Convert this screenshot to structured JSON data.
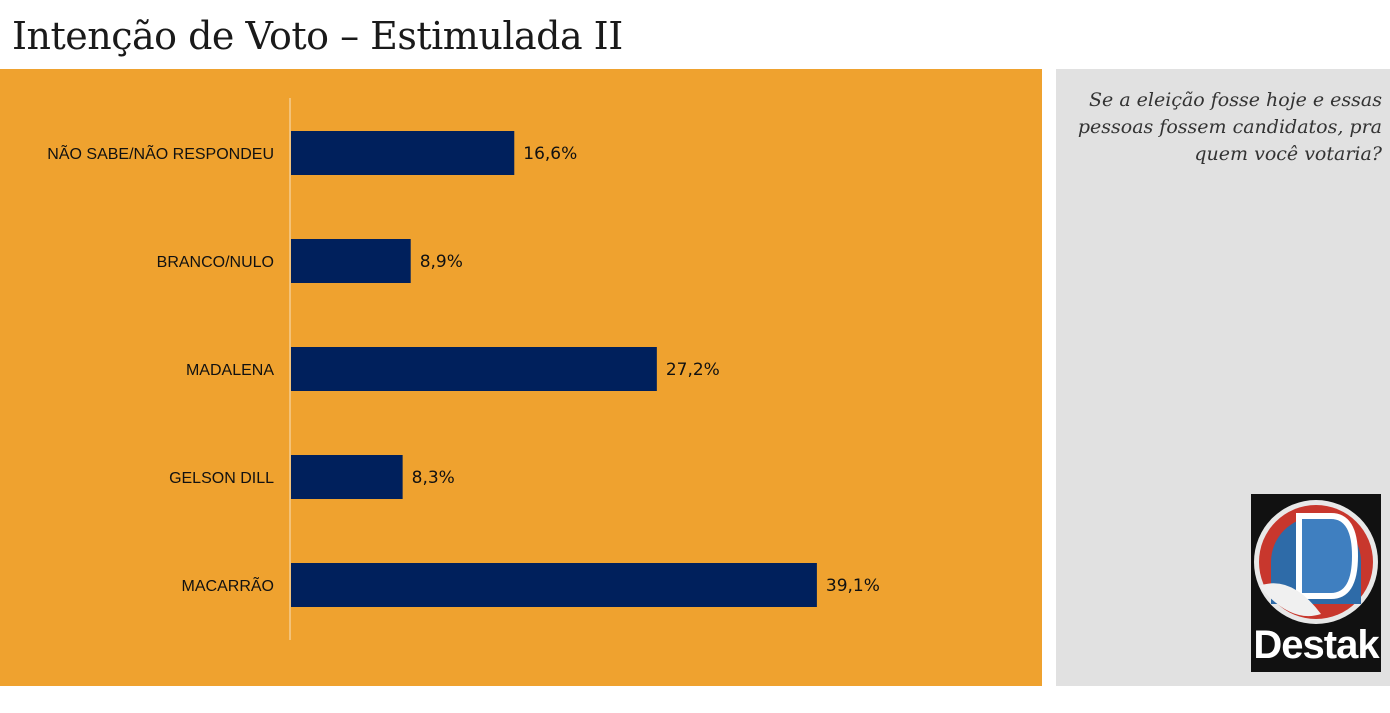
{
  "page": {
    "title": "Intenção de Voto – Estimulada II"
  },
  "side_panel": {
    "question": "Se a eleição fosse hoje e essas pessoas fossem candidatos, pra quem você votaria?",
    "logo_text": "Destak"
  },
  "colors": {
    "chart_background": "#EFA22F",
    "bar": "#00205C",
    "side_background": "#E1E1E1"
  },
  "chart_data": {
    "type": "bar",
    "orientation": "horizontal",
    "title": "Intenção de Voto – Estimulada II",
    "categories": [
      "NÃO SABE/NÃO RESPONDEU",
      "BRANCO/NULO",
      "MADALENA",
      "GELSON DILL",
      "MACARRÃO"
    ],
    "values": [
      16.6,
      8.9,
      27.2,
      8.3,
      39.1
    ],
    "value_labels": [
      "16,6%",
      "8,9%",
      "27,2%",
      "8,3%",
      "39,1%"
    ],
    "unit": "%",
    "xlim": [
      0,
      50
    ],
    "grid": false,
    "legend": "none"
  }
}
